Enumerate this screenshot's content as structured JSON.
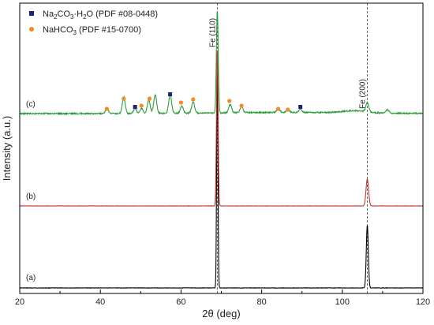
{
  "chart_data": {
    "type": "line",
    "xlabel": "2θ (deg)",
    "ylabel": "Intensity (a.u.)",
    "xlim": [
      20,
      120
    ],
    "xticks": [
      20,
      40,
      60,
      80,
      100,
      120
    ],
    "y_tick_labels": "none",
    "grid": false,
    "legend_position": "top-left",
    "legend": [
      {
        "label_main": "Na",
        "label_sub1": "2",
        "label_mid": "CO",
        "label_sub2": "3",
        "label_tail": "·H",
        "label_sub3": "2",
        "label_end": "O (PDF #08-0448)",
        "marker": "square",
        "color": "#1a237e"
      },
      {
        "label_main": "NaHCO",
        "label_sub1": "3",
        "label_tail": " (PDF #15-0700)",
        "marker": "circle",
        "color": "#f28c28"
      }
    ],
    "reference_lines": [
      {
        "x": 69.0,
        "label": "Fe (110)",
        "style": "dashed"
      },
      {
        "x": 106.2,
        "label": "Fe (200)",
        "style": "dashed"
      }
    ],
    "series": [
      {
        "name": "(a)",
        "color": "#000000",
        "peaks": [
          {
            "x": 69.0,
            "rel_height": 1.0
          },
          {
            "x": 106.2,
            "rel_height": 0.26
          }
        ]
      },
      {
        "name": "(b)",
        "color": "#c0392b",
        "peaks": [
          {
            "x": 69.0,
            "rel_height": 1.0
          },
          {
            "x": 106.2,
            "rel_height": 0.17
          }
        ]
      },
      {
        "name": "(c)",
        "color": "#2e9e3a",
        "peaks": [
          {
            "x": 41.6,
            "rel_height": 0.05
          },
          {
            "x": 45.8,
            "rel_height": 0.16
          },
          {
            "x": 48.6,
            "rel_height": 0.05
          },
          {
            "x": 50.2,
            "rel_height": 0.05
          },
          {
            "x": 52.0,
            "rel_height": 0.13
          },
          {
            "x": 53.6,
            "rel_height": 0.18
          },
          {
            "x": 57.3,
            "rel_height": 0.18
          },
          {
            "x": 60.2,
            "rel_height": 0.07
          },
          {
            "x": 63.0,
            "rel_height": 0.11
          },
          {
            "x": 69.0,
            "rel_height": 1.0
          },
          {
            "x": 72.2,
            "rel_height": 0.08
          },
          {
            "x": 75.0,
            "rel_height": 0.06
          },
          {
            "x": 84.1,
            "rel_height": 0.04
          },
          {
            "x": 86.5,
            "rel_height": 0.03
          },
          {
            "x": 89.6,
            "rel_height": 0.03
          },
          {
            "x": 106.2,
            "rel_height": 0.09
          },
          {
            "x": 111.2,
            "rel_height": 0.03
          }
        ],
        "na2co3_h2o_markers": [
          48.6,
          57.3,
          89.6
        ],
        "nahco3_markers": [
          41.6,
          45.8,
          50.2,
          52.2,
          60.0,
          63.0,
          72.0,
          75.0,
          84.1,
          86.5
        ]
      }
    ]
  }
}
